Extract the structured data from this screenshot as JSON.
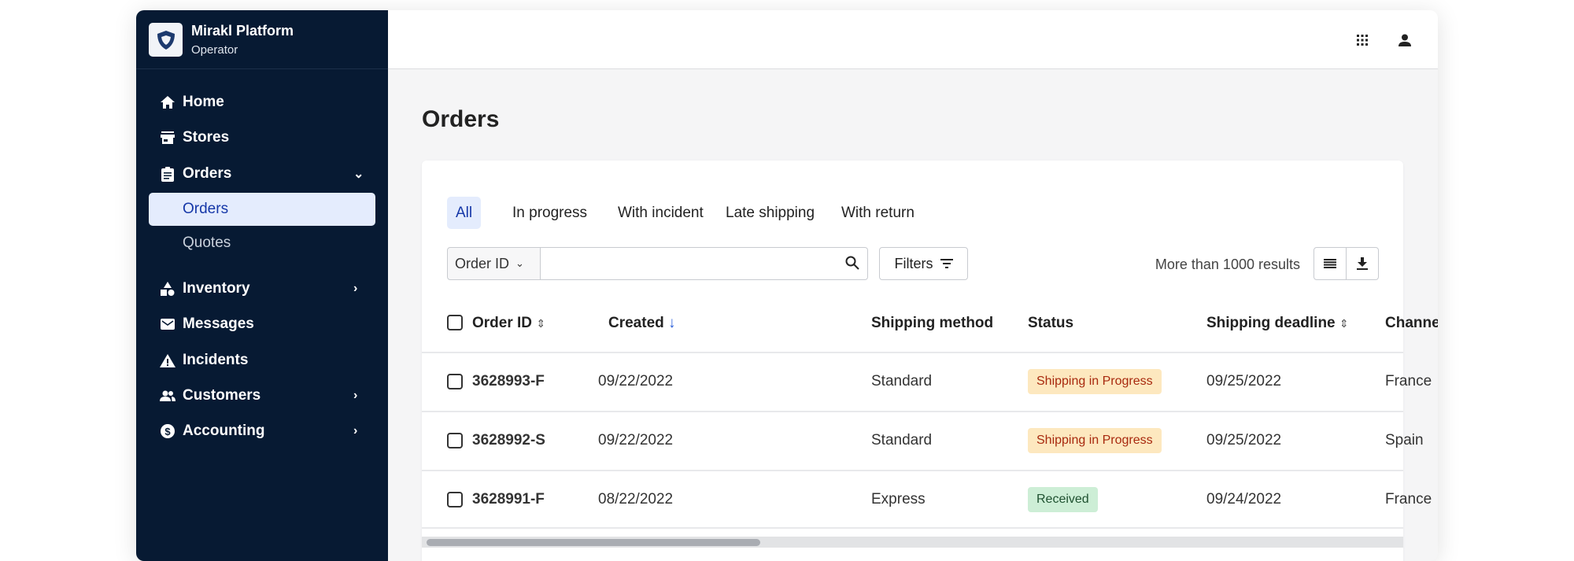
{
  "brand": {
    "title": "Mirakl Platform",
    "subtitle": "Operator"
  },
  "sidebar": {
    "items": [
      {
        "label": "Home",
        "icon": "home-icon"
      },
      {
        "label": "Stores",
        "icon": "store-icon"
      },
      {
        "label": "Orders",
        "icon": "clipboard-icon",
        "expanded": true
      },
      {
        "label": "Orders",
        "active": true
      },
      {
        "label": "Quotes"
      },
      {
        "label": "Inventory",
        "icon": "shapes-icon"
      },
      {
        "label": "Messages",
        "icon": "mail-icon"
      },
      {
        "label": "Incidents",
        "icon": "warning-icon"
      },
      {
        "label": "Customers",
        "icon": "people-icon"
      },
      {
        "label": "Accounting",
        "icon": "dollar-icon"
      }
    ]
  },
  "page": {
    "title": "Orders"
  },
  "tabs": [
    "All",
    "In progress",
    "With incident",
    "Late shipping",
    "With return"
  ],
  "search": {
    "field": "Order ID",
    "value": "",
    "filters_label": "Filters",
    "results": "More than 1000 results"
  },
  "table": {
    "columns": [
      "Order ID",
      "Created",
      "Shipping method",
      "Status",
      "Shipping deadline",
      "Channel"
    ],
    "rows": [
      {
        "id": "3628993-F",
        "created": "09/22/2022",
        "method": "Standard",
        "status": "Shipping in Progress",
        "deadline": "09/25/2022",
        "channel": "France"
      },
      {
        "id": "3628992-S",
        "created": "09/22/2022",
        "method": "Standard",
        "status": "Shipping in Progress",
        "deadline": "09/25/2022",
        "channel": "Spain"
      },
      {
        "id": "3628991-F",
        "created": "08/22/2022",
        "method": "Express",
        "status": "Received",
        "deadline": "09/24/2022",
        "channel": "France"
      }
    ]
  },
  "colors": {
    "sidebar": "#071a33",
    "accent": "#1537a8",
    "progress_bg": "#fde8bf",
    "progress_fg": "#a8290e",
    "received_bg": "#cdeed6",
    "received_fg": "#1f5130"
  }
}
